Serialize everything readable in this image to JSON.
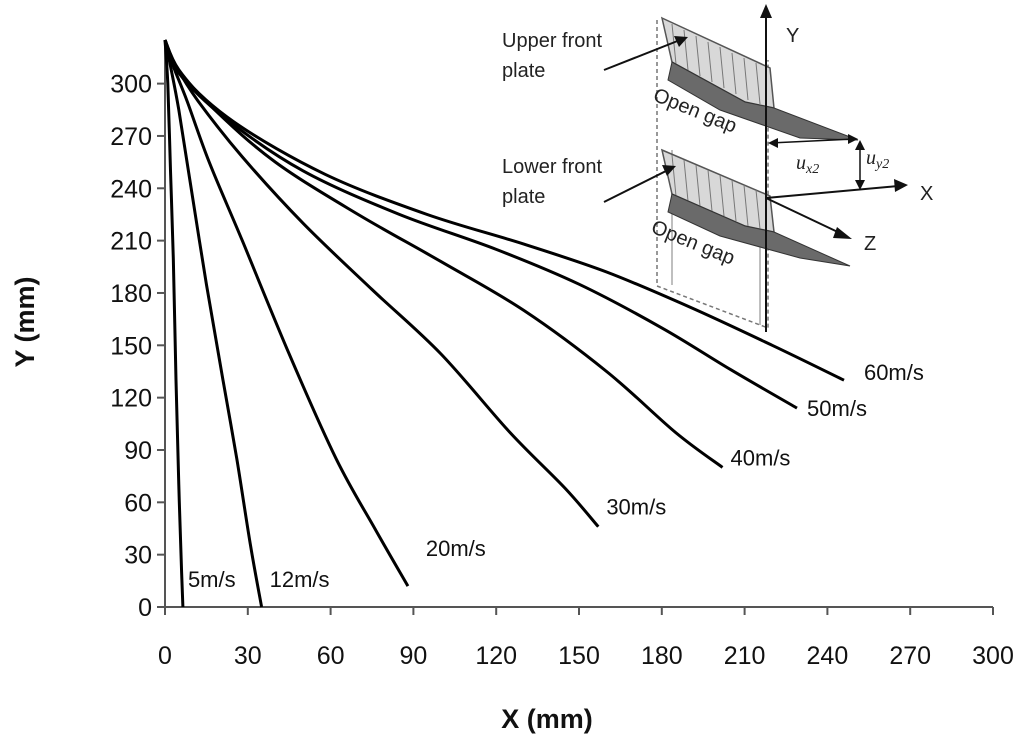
{
  "chart_data": {
    "type": "line",
    "title": "",
    "xlabel": "X (mm)",
    "ylabel": "Y (mm)",
    "xlim": [
      0,
      300
    ],
    "ylim": [
      0,
      325
    ],
    "xticks": [
      0,
      30,
      60,
      90,
      120,
      150,
      180,
      210,
      240,
      270,
      300
    ],
    "yticks": [
      0,
      30,
      60,
      90,
      120,
      150,
      180,
      210,
      240,
      270,
      300
    ],
    "grid": false,
    "legend": "none",
    "series": [
      {
        "name": "5m/s",
        "points": [
          [
            0,
            325
          ],
          [
            1,
            300
          ],
          [
            2,
            250
          ],
          [
            3,
            200
          ],
          [
            4,
            130
          ],
          [
            5,
            70
          ],
          [
            6,
            20
          ],
          [
            6.5,
            0
          ]
        ]
      },
      {
        "name": "12m/s",
        "points": [
          [
            0,
            325
          ],
          [
            2,
            310
          ],
          [
            5,
            285
          ],
          [
            9,
            245
          ],
          [
            15,
            185
          ],
          [
            21,
            130
          ],
          [
            26,
            85
          ],
          [
            31,
            35
          ],
          [
            35,
            0
          ]
        ]
      },
      {
        "name": "20m/s",
        "points": [
          [
            0,
            325
          ],
          [
            3,
            310
          ],
          [
            8,
            290
          ],
          [
            16,
            255
          ],
          [
            28,
            210
          ],
          [
            45,
            145
          ],
          [
            62,
            85
          ],
          [
            76,
            45
          ],
          [
            88,
            12
          ]
        ]
      },
      {
        "name": "30m/s",
        "points": [
          [
            0,
            325
          ],
          [
            4,
            310
          ],
          [
            12,
            290
          ],
          [
            28,
            258
          ],
          [
            50,
            220
          ],
          [
            75,
            182
          ],
          [
            100,
            145
          ],
          [
            125,
            100
          ],
          [
            145,
            68
          ],
          [
            157,
            46
          ]
        ]
      },
      {
        "name": "40m/s",
        "points": [
          [
            0,
            325
          ],
          [
            5,
            308
          ],
          [
            18,
            285
          ],
          [
            40,
            255
          ],
          [
            70,
            225
          ],
          [
            100,
            198
          ],
          [
            130,
            170
          ],
          [
            160,
            135
          ],
          [
            185,
            100
          ],
          [
            202,
            80
          ]
        ]
      },
      {
        "name": "50m/s",
        "points": [
          [
            0,
            325
          ],
          [
            5,
            306
          ],
          [
            22,
            280
          ],
          [
            50,
            250
          ],
          [
            85,
            225
          ],
          [
            120,
            205
          ],
          [
            150,
            185
          ],
          [
            180,
            160
          ],
          [
            205,
            136
          ],
          [
            229,
            114
          ]
        ]
      },
      {
        "name": "60m/s",
        "points": [
          [
            0,
            325
          ],
          [
            6,
            305
          ],
          [
            25,
            278
          ],
          [
            58,
            248
          ],
          [
            95,
            225
          ],
          [
            130,
            208
          ],
          [
            160,
            192
          ],
          [
            190,
            172
          ],
          [
            220,
            150
          ],
          [
            246,
            130
          ]
        ]
      }
    ],
    "inset": {
      "labels": {
        "upper_front_plate": "Upper front plate",
        "lower_front_plate": "Lower front plate",
        "open_gap_upper": "Open gap",
        "open_gap_lower": "Open gap",
        "axis_y": "Y",
        "axis_x": "X",
        "axis_z": "Z",
        "ux2": "u",
        "ux2_sub": "x2",
        "uy2": "u",
        "uy2_sub": "y2"
      }
    }
  }
}
